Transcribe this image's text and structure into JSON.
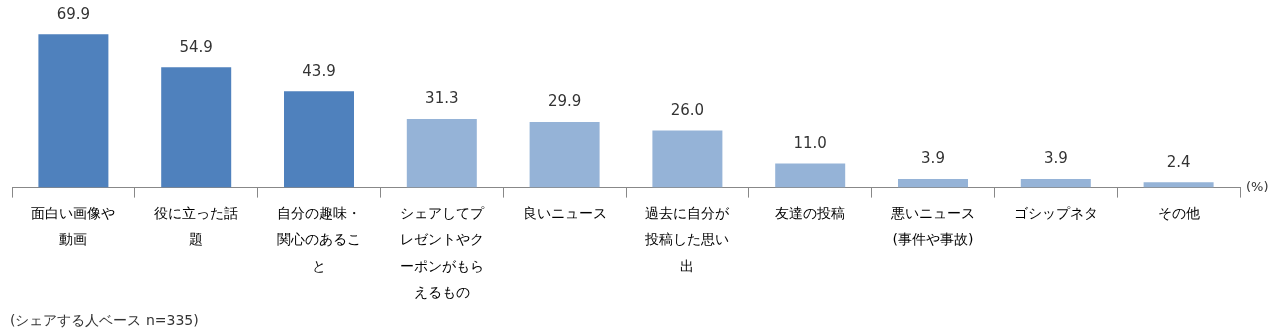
{
  "chart_data": {
    "type": "bar",
    "categories": [
      "面白い画像や動画",
      "役に立った話題",
      "自分の趣味・関心のあること",
      "シェアしてプレゼントやクーポンがもらえるもの",
      "良いニュース",
      "過去に自分が投稿した思い出",
      "友達の投稿",
      "悪いニュース(事件や事故)",
      "ゴシップネタ",
      "その他"
    ],
    "values": [
      69.9,
      54.9,
      43.9,
      31.3,
      29.9,
      26.0,
      11.0,
      3.9,
      3.9,
      2.4
    ],
    "colors": [
      "#4f81bd",
      "#4f81bd",
      "#4f81bd",
      "#95b3d7",
      "#95b3d7",
      "#95b3d7",
      "#95b3d7",
      "#95b3d7",
      "#95b3d7",
      "#95b3d7"
    ],
    "value_labels": [
      "69.9",
      "54.9",
      "43.9",
      "31.3",
      "29.9",
      "26.0",
      "11.0",
      "3.9",
      "3.9",
      "2.4"
    ],
    "ylabel": "(%)",
    "annotations": [
      "(シェアする人ベース n=335)"
    ],
    "grid": false,
    "legend": false
  }
}
